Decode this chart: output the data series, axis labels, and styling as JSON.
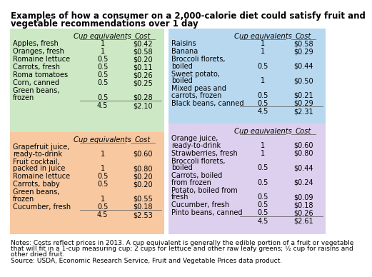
{
  "title_line1": "Examples of how a consumer on a 2,000-calorie diet could satisfy fruit and",
  "title_line2": "vegetable recommendations over 1 day",
  "title_fontsize": 8.5,
  "bg_color": "#ffffff",
  "panels": [
    {
      "bg_color": "#cce8c4",
      "header": [
        "Cup equivalents",
        "Cost"
      ],
      "items": [
        [
          "Apples, fresh",
          "1",
          "$0.42"
        ],
        [
          "Oranges, fresh",
          "1",
          "$0.58"
        ],
        [
          "Romaine lettuce",
          "0.5",
          "$0.20"
        ],
        [
          "Carrots, fresh",
          "0.5",
          "$0.11"
        ],
        [
          "Roma tomatoes",
          "0.5",
          "$0.26"
        ],
        [
          "Corn, canned",
          "0.5",
          "$0.25"
        ],
        [
          "Green beans,\nfrozen",
          "0.5",
          "$0.28"
        ]
      ],
      "total": [
        "4.5",
        "$2.10"
      ]
    },
    {
      "bg_color": "#b8d8f0",
      "header": [
        "Cup equivalents",
        "Cost"
      ],
      "items": [
        [
          "Raisins",
          "1",
          "$0.58"
        ],
        [
          "Banana",
          "1",
          "$0.29"
        ],
        [
          "Broccoli florets,\nboiled",
          "0.5",
          "$0.44"
        ],
        [
          "Sweet potato,\nboiled",
          "1",
          "$0.50"
        ],
        [
          "Mixed peas and\ncarrots, frozen",
          "0.5",
          "$0.21"
        ],
        [
          "Black beans, canned",
          "0.5",
          "$0.29"
        ]
      ],
      "total": [
        "4.5",
        "$2.31"
      ]
    },
    {
      "bg_color": "#f8c8a0",
      "header": [
        "Cup equivalents",
        "Cost"
      ],
      "items": [
        [
          "Grapefruit juice,\nready-to-drink",
          "1",
          "$0.60"
        ],
        [
          "Fruit cocktail,\npacked in juice",
          "1",
          "$0.80"
        ],
        [
          "Romaine lettuce",
          "0.5",
          "$0.20"
        ],
        [
          "Carrots, baby",
          "0.5",
          "$0.20"
        ],
        [
          "Green beans,\nfrozen",
          "1",
          "$0.55"
        ],
        [
          "Cucumber, fresh",
          "0.5",
          "$0.18"
        ]
      ],
      "total": [
        "4.5",
        "$2.53"
      ]
    },
    {
      "bg_color": "#ddd0ee",
      "header": [
        "Cup equivalents",
        "Cost"
      ],
      "items": [
        [
          "Orange juice,\nready-to-drink",
          "1",
          "$0.60"
        ],
        [
          "Strawberries, fresh",
          "1",
          "$0.80"
        ],
        [
          "Broccoli florets,\nboiled",
          "0.5",
          "$0.44"
        ],
        [
          "Carrots, boiled\nfrom frozen",
          "0.5",
          "$0.24"
        ],
        [
          "Potato, boiled from\nfresh",
          "0.5",
          "$0.09"
        ],
        [
          "Cucumber, fresh",
          "0.5",
          "$0.18"
        ],
        [
          "Pinto beans, canned",
          "0.5",
          "$0.26"
        ]
      ],
      "total": [
        "4.5",
        "$2.61"
      ]
    }
  ],
  "notes_line1": "Notes: Costs reflect prices in 2013. A cup equivalent is generally the edible portion of a fruit or vegetable",
  "notes_line2": "that will fit in a 1-cup measuring cup; 2 cups for lettuce and other raw leafy greens; ½ cup for raisins and",
  "notes_line3": "other dried fruit.",
  "source": "Source: USDA, Economic Research Service, Fruit and Vegetable Prices data product.",
  "notes_fontsize": 6.5,
  "item_fontsize": 7.0,
  "header_fontsize": 7.2
}
